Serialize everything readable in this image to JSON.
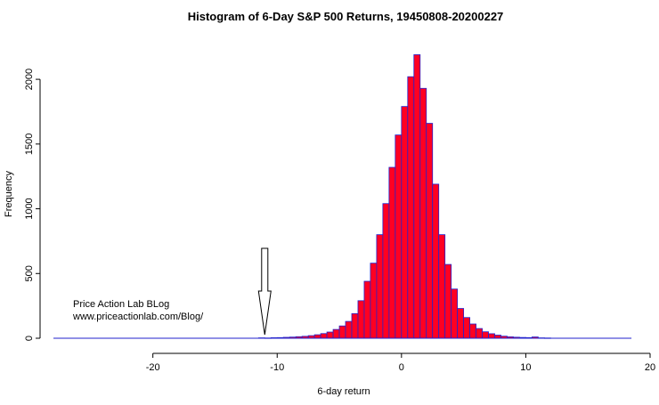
{
  "chart_data": {
    "type": "bar",
    "title": "Histogram of 6-Day S&P 500 Returns, 19450808-20200227",
    "xlabel": "6-day return",
    "ylabel": "Frequency",
    "xlim": [
      -28,
      20
    ],
    "ylim": [
      0,
      2200
    ],
    "x_ticks": [
      -20,
      -10,
      0,
      10,
      20
    ],
    "y_ticks": [
      0,
      500,
      1000,
      1500,
      2000
    ],
    "bin_width": 0.5,
    "bar_fill": "#ff0022",
    "bar_border": "#2222cc",
    "bins": [
      {
        "x0": -11.5,
        "count": 3
      },
      {
        "x0": -11.0,
        "count": 2
      },
      {
        "x0": -10.5,
        "count": 4
      },
      {
        "x0": -10.0,
        "count": 5
      },
      {
        "x0": -9.5,
        "count": 7
      },
      {
        "x0": -9.0,
        "count": 9
      },
      {
        "x0": -8.5,
        "count": 12
      },
      {
        "x0": -8.0,
        "count": 15
      },
      {
        "x0": -7.5,
        "count": 20
      },
      {
        "x0": -7.0,
        "count": 27
      },
      {
        "x0": -6.5,
        "count": 36
      },
      {
        "x0": -6.0,
        "count": 48
      },
      {
        "x0": -5.5,
        "count": 68
      },
      {
        "x0": -5.0,
        "count": 95
      },
      {
        "x0": -4.5,
        "count": 130
      },
      {
        "x0": -4.0,
        "count": 190
      },
      {
        "x0": -3.5,
        "count": 290
      },
      {
        "x0": -3.0,
        "count": 440
      },
      {
        "x0": -2.5,
        "count": 580
      },
      {
        "x0": -2.0,
        "count": 800
      },
      {
        "x0": -1.5,
        "count": 1040
      },
      {
        "x0": -1.0,
        "count": 1320
      },
      {
        "x0": -0.5,
        "count": 1570
      },
      {
        "x0": 0.0,
        "count": 1790
      },
      {
        "x0": 0.5,
        "count": 2020
      },
      {
        "x0": 1.0,
        "count": 2190
      },
      {
        "x0": 1.5,
        "count": 1930
      },
      {
        "x0": 2.0,
        "count": 1660
      },
      {
        "x0": 2.5,
        "count": 1190
      },
      {
        "x0": 3.0,
        "count": 800
      },
      {
        "x0": 3.5,
        "count": 570
      },
      {
        "x0": 4.0,
        "count": 380
      },
      {
        "x0": 4.5,
        "count": 230
      },
      {
        "x0": 5.0,
        "count": 160
      },
      {
        "x0": 5.5,
        "count": 110
      },
      {
        "x0": 6.0,
        "count": 75
      },
      {
        "x0": 6.5,
        "count": 50
      },
      {
        "x0": 7.0,
        "count": 35
      },
      {
        "x0": 7.5,
        "count": 24
      },
      {
        "x0": 8.0,
        "count": 16
      },
      {
        "x0": 8.5,
        "count": 11
      },
      {
        "x0": 9.0,
        "count": 8
      },
      {
        "x0": 9.5,
        "count": 6
      },
      {
        "x0": 10.0,
        "count": 5
      },
      {
        "x0": 10.5,
        "count": 10
      },
      {
        "x0": 11.0,
        "count": 3
      },
      {
        "x0": 11.5,
        "count": 2
      }
    ],
    "baseline_range": [
      -28,
      18.5
    ],
    "arrow_at_x": -11,
    "annotations": [
      "Price Action Lab BLog",
      "www.priceactionlab.com/Blog/"
    ]
  }
}
